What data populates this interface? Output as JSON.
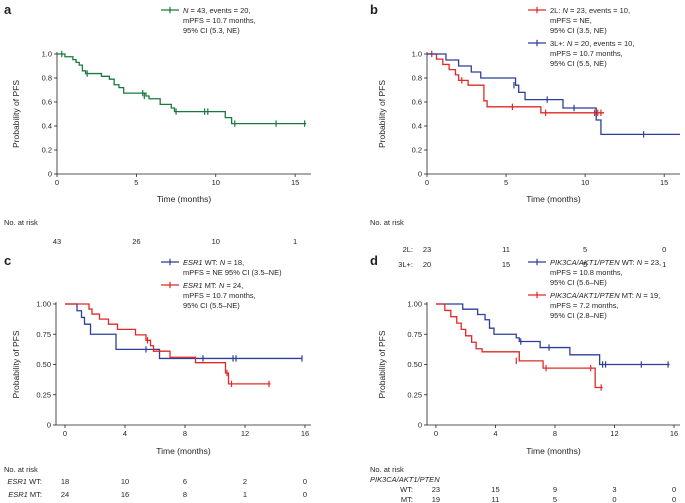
{
  "chart_data": [
    {
      "panel": "a",
      "type": "line",
      "subtype": "kaplan-meier",
      "xlabel": "Time (months)",
      "ylabel": "Probability of PFS",
      "xlim": [
        0,
        16
      ],
      "ylim": [
        0,
        1.0
      ],
      "xticks": [
        0,
        5,
        10,
        15
      ],
      "xtick_labels": [
        "0",
        "5",
        "10",
        "15"
      ],
      "yticks": [
        0,
        0.2,
        0.4,
        0.6,
        0.8,
        1.0
      ],
      "ytick_labels": [
        "0",
        "0.2",
        "0.4",
        "0.6",
        "0.8",
        "1.0"
      ],
      "series": [
        {
          "name": "overall",
          "color": "#1a7a3c",
          "legend_lines": [
            {
              "segments": [
                {
                  "t": "N",
                  "i": true
                },
                {
                  "t": " = 43, events = 20,"
                }
              ]
            },
            {
              "segments": [
                {
                  "t": "mPFS = 10.7 months,"
                }
              ]
            },
            {
              "segments": [
                {
                  "t": "95% CI (5.3, NE)"
                }
              ]
            }
          ],
          "steps": [
            [
              0,
              1.0
            ],
            [
              0.5,
              0.977
            ],
            [
              1.0,
              0.953
            ],
            [
              1.2,
              0.93
            ],
            [
              1.4,
              0.907
            ],
            [
              1.6,
              0.86
            ],
            [
              1.8,
              0.837
            ],
            [
              2.8,
              0.814
            ],
            [
              3.3,
              0.79
            ],
            [
              3.6,
              0.744
            ],
            [
              3.9,
              0.72
            ],
            [
              4.2,
              0.674
            ],
            [
              5.6,
              0.65
            ],
            [
              5.8,
              0.627
            ],
            [
              6.5,
              0.58
            ],
            [
              7.2,
              0.55
            ],
            [
              7.4,
              0.52
            ],
            [
              10.6,
              0.47
            ],
            [
              11.0,
              0.42
            ]
          ],
          "end": 15.7,
          "censors": [
            [
              0.3,
              1.0
            ],
            [
              1.9,
              0.837
            ],
            [
              5.4,
              0.674
            ],
            [
              5.5,
              0.65
            ],
            [
              7.5,
              0.52
            ],
            [
              9.3,
              0.52
            ],
            [
              9.5,
              0.52
            ],
            [
              11.2,
              0.42
            ],
            [
              13.8,
              0.42
            ],
            [
              15.6,
              0.42
            ]
          ]
        }
      ],
      "risk": {
        "title": "No. at risk",
        "times": [
          0,
          5,
          10,
          15
        ],
        "rows": [
          {
            "label": "",
            "italic": false,
            "values": [
              "43",
              "26",
              "10",
              "1"
            ]
          }
        ]
      }
    },
    {
      "panel": "b",
      "type": "line",
      "subtype": "kaplan-meier",
      "xlabel": "Time (months)",
      "ylabel": "Probability of PFS",
      "xlim": [
        0,
        16
      ],
      "ylim": [
        0,
        1.0
      ],
      "xticks": [
        0,
        5,
        10,
        15
      ],
      "xtick_labels": [
        "0",
        "5",
        "10",
        "15"
      ],
      "yticks": [
        0,
        0.2,
        0.4,
        0.6,
        0.8,
        1.0
      ],
      "ytick_labels": [
        "0",
        "0.2",
        "0.4",
        "0.6",
        "0.8",
        "1.0"
      ],
      "series": [
        {
          "name": "2L",
          "color": "#e02826",
          "legend_lines": [
            {
              "segments": [
                {
                  "t": "2L: "
                },
                {
                  "t": "N",
                  "i": true
                },
                {
                  "t": " = 23, events = 10,"
                }
              ]
            },
            {
              "segments": [
                {
                  "t": "mPFS = NE,"
                }
              ]
            },
            {
              "segments": [
                {
                  "t": "95% CI (3.5, NE)"
                }
              ]
            }
          ],
          "steps": [
            [
              0,
              1.0
            ],
            [
              0.6,
              0.957
            ],
            [
              1.0,
              0.913
            ],
            [
              1.4,
              0.87
            ],
            [
              1.8,
              0.826
            ],
            [
              2.0,
              0.78
            ],
            [
              2.6,
              0.74
            ],
            [
              3.6,
              0.61
            ],
            [
              3.8,
              0.56
            ],
            [
              7.2,
              0.51
            ]
          ],
          "end": 11.2,
          "censors": [
            [
              0.3,
              1.0
            ],
            [
              2.2,
              0.78
            ],
            [
              5.4,
              0.56
            ],
            [
              7.5,
              0.51
            ],
            [
              10.6,
              0.51
            ],
            [
              10.8,
              0.51
            ],
            [
              11.0,
              0.51
            ]
          ]
        },
        {
          "name": "3L+",
          "color": "#2e3f98",
          "legend_lines": [
            {
              "segments": [
                {
                  "t": "3L+: "
                },
                {
                  "t": "N",
                  "i": true
                },
                {
                  "t": " = 20, events = 10,"
                }
              ]
            },
            {
              "segments": [
                {
                  "t": "mPFS = 10.7 months,"
                }
              ]
            },
            {
              "segments": [
                {
                  "t": "95% CI (5.5, NE)"
                }
              ]
            }
          ],
          "steps": [
            [
              0,
              1.0
            ],
            [
              1.2,
              0.95
            ],
            [
              2.0,
              0.9
            ],
            [
              2.8,
              0.85
            ],
            [
              3.4,
              0.8
            ],
            [
              5.6,
              0.74
            ],
            [
              5.8,
              0.68
            ],
            [
              6.2,
              0.62
            ],
            [
              8.6,
              0.55
            ],
            [
              10.7,
              0.45
            ],
            [
              11.0,
              0.33
            ]
          ],
          "end": 16.0,
          "censors": [
            [
              5.5,
              0.74
            ],
            [
              7.6,
              0.62
            ],
            [
              9.3,
              0.55
            ],
            [
              13.7,
              0.33
            ]
          ]
        }
      ],
      "risk": {
        "title": "No. at risk",
        "times": [
          0,
          5,
          10,
          15
        ],
        "rows": [
          {
            "label": "2L:",
            "italic": false,
            "values": [
              "23",
              "11",
              "5",
              "0"
            ]
          },
          {
            "label": "3L+:",
            "italic": false,
            "values": [
              "20",
              "15",
              "5",
              "1"
            ]
          }
        ]
      }
    },
    {
      "panel": "c",
      "type": "line",
      "subtype": "kaplan-meier",
      "xlabel": "Time (months)",
      "ylabel": "Probability of PFS",
      "xlim": [
        -0.6,
        16.4
      ],
      "ylim": [
        0,
        1.0
      ],
      "xticks": [
        0,
        4,
        8,
        12,
        16
      ],
      "xtick_labels": [
        "0",
        "4",
        "8",
        "12",
        "16"
      ],
      "yticks": [
        0,
        0.25,
        0.5,
        0.75,
        1.0
      ],
      "ytick_labels": [
        "0",
        "0.25",
        "0.50",
        "0.75",
        "1.00"
      ],
      "series": [
        {
          "name": "ESR1 WT",
          "color": "#2e3f98",
          "legend_lines": [
            {
              "segments": [
                {
                  "t": "ESR1",
                  "i": true
                },
                {
                  "t": " WT: "
                },
                {
                  "t": "N",
                  "i": true
                },
                {
                  "t": " = 18,"
                }
              ]
            },
            {
              "segments": [
                {
                  "t": "mPFS = NE 95% CI (3.5–NE)"
                }
              ]
            }
          ],
          "steps": [
            [
              0,
              1.0
            ],
            [
              0.8,
              0.944
            ],
            [
              1.1,
              0.889
            ],
            [
              1.3,
              0.833
            ],
            [
              1.7,
              0.75
            ],
            [
              3.4,
              0.625
            ],
            [
              5.5,
              0.625
            ],
            [
              6.3,
              0.55
            ]
          ],
          "end": 15.8,
          "censors": [
            [
              5.4,
              0.625
            ],
            [
              9.2,
              0.55
            ],
            [
              11.2,
              0.55
            ],
            [
              11.4,
              0.55
            ],
            [
              15.8,
              0.55
            ]
          ]
        },
        {
          "name": "ESR1 MT",
          "color": "#e02826",
          "legend_lines": [
            {
              "segments": [
                {
                  "t": "ESR1",
                  "i": true
                },
                {
                  "t": " MT: "
                },
                {
                  "t": "N",
                  "i": true
                },
                {
                  "t": " = 24,"
                }
              ]
            },
            {
              "segments": [
                {
                  "t": "mPFS = 10.7 months,"
                }
              ]
            },
            {
              "segments": [
                {
                  "t": "95% CI (5.5–NE)"
                }
              ]
            }
          ],
          "steps": [
            [
              0,
              1.0
            ],
            [
              1.6,
              0.958
            ],
            [
              1.8,
              0.917
            ],
            [
              2.3,
              0.875
            ],
            [
              2.9,
              0.833
            ],
            [
              3.5,
              0.79
            ],
            [
              4.7,
              0.745
            ],
            [
              5.4,
              0.7
            ],
            [
              5.7,
              0.655
            ],
            [
              5.9,
              0.61
            ],
            [
              7.0,
              0.56
            ],
            [
              8.7,
              0.515
            ],
            [
              10.7,
              0.43
            ],
            [
              10.9,
              0.34
            ]
          ],
          "end": 13.7,
          "censors": [
            [
              5.5,
              0.7
            ],
            [
              10.8,
              0.43
            ],
            [
              11.1,
              0.34
            ],
            [
              13.6,
              0.34
            ]
          ]
        }
      ],
      "risk": {
        "title": "No. at risk",
        "times": [
          0,
          4,
          8,
          12,
          16
        ],
        "rows": [
          {
            "label": "ESR1 WT:",
            "italic": true,
            "values": [
              "18",
              "10",
              "6",
              "2",
              "0"
            ]
          },
          {
            "label": "ESR1 MT:",
            "italic": true,
            "values": [
              "24",
              "16",
              "8",
              "1",
              "0"
            ]
          }
        ]
      }
    },
    {
      "panel": "d",
      "type": "line",
      "subtype": "kaplan-meier",
      "xlabel": "Time (months)",
      "ylabel": "Probability of PFS",
      "xlim": [
        -0.6,
        16.4
      ],
      "ylim": [
        0,
        1.0
      ],
      "xticks": [
        0,
        4,
        8,
        12,
        16
      ],
      "xtick_labels": [
        "0",
        "4",
        "8",
        "12",
        "16"
      ],
      "yticks": [
        0,
        0.25,
        0.5,
        0.75,
        1.0
      ],
      "ytick_labels": [
        "0",
        "0.25",
        "0.50",
        "0.75",
        "1.00"
      ],
      "series": [
        {
          "name": "PIK3CA/AKT1/PTEN WT",
          "color": "#2e3f98",
          "legend_lines": [
            {
              "segments": [
                {
                  "t": "PIK3CA/AKT1/PTEN",
                  "i": true
                },
                {
                  "t": " WT: "
                },
                {
                  "t": "N",
                  "i": true
                },
                {
                  "t": " = 23,"
                }
              ]
            },
            {
              "segments": [
                {
                  "t": "mPFS = 10.8 months,"
                }
              ]
            },
            {
              "segments": [
                {
                  "t": "95% CI (5.6–NE)"
                }
              ]
            }
          ],
          "steps": [
            [
              0,
              1.0
            ],
            [
              1.8,
              0.957
            ],
            [
              2.8,
              0.913
            ],
            [
              3.3,
              0.87
            ],
            [
              3.6,
              0.8
            ],
            [
              3.9,
              0.75
            ],
            [
              5.4,
              0.72
            ],
            [
              5.6,
              0.69
            ],
            [
              7.0,
              0.64
            ],
            [
              9.0,
              0.58
            ],
            [
              11.0,
              0.5
            ]
          ],
          "end": 15.7,
          "censors": [
            [
              5.7,
              0.69
            ],
            [
              7.6,
              0.64
            ],
            [
              11.2,
              0.5
            ],
            [
              11.4,
              0.5
            ],
            [
              13.8,
              0.5
            ],
            [
              15.6,
              0.5
            ]
          ]
        },
        {
          "name": "PIK3CA/AKT1/PTEN MT",
          "color": "#e02826",
          "legend_lines": [
            {
              "segments": [
                {
                  "t": "PIK3CA/AKT1/PTEN",
                  "i": true
                },
                {
                  "t": " MT: "
                },
                {
                  "t": "N",
                  "i": true
                },
                {
                  "t": " = 19,"
                }
              ]
            },
            {
              "segments": [
                {
                  "t": "mPFS = 7.2 months,"
                }
              ]
            },
            {
              "segments": [
                {
                  "t": "95% CI (2.8–NE)"
                }
              ]
            }
          ],
          "steps": [
            [
              0,
              1.0
            ],
            [
              0.6,
              0.947
            ],
            [
              1.0,
              0.895
            ],
            [
              1.4,
              0.842
            ],
            [
              1.7,
              0.79
            ],
            [
              2.0,
              0.737
            ],
            [
              2.4,
              0.684
            ],
            [
              2.7,
              0.63
            ],
            [
              3.1,
              0.605
            ],
            [
              5.6,
              0.53
            ],
            [
              7.2,
              0.47
            ],
            [
              10.7,
              0.31
            ]
          ],
          "end": 11.2,
          "censors": [
            [
              5.4,
              0.53
            ],
            [
              7.4,
              0.47
            ],
            [
              10.4,
              0.47
            ],
            [
              11.1,
              0.31
            ]
          ]
        }
      ],
      "risk": {
        "title": "No. at risk",
        "subtitle": "PIK3CA/AKT1/PTEN",
        "times": [
          0,
          4,
          8,
          12,
          16
        ],
        "rows": [
          {
            "label": "WT:",
            "italic": false,
            "values": [
              "23",
              "15",
              "9",
              "3",
              "0"
            ]
          },
          {
            "label": "MT:",
            "italic": false,
            "values": [
              "19",
              "11",
              "5",
              "0",
              "0"
            ]
          }
        ]
      }
    }
  ]
}
